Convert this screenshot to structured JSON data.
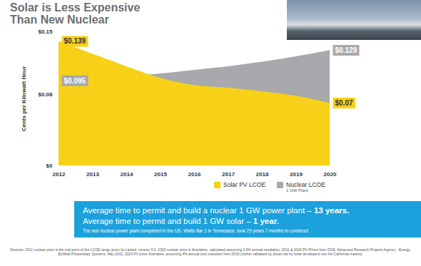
{
  "chart_data": {
    "type": "area",
    "title": "Solar is Less Expensive Than New Nuclear",
    "y_label": "Cents per Kilowatt Hour",
    "x": [
      2012,
      2013,
      2014,
      2015,
      2016,
      2017,
      2018,
      2019,
      2020
    ],
    "xlim": [
      2012,
      2020
    ],
    "xticks": [
      2012,
      2013,
      2014,
      2015,
      2016,
      2017,
      2018,
      2019,
      2020
    ],
    "ylim": [
      0,
      0.15
    ],
    "yticks": [
      {
        "value": 0,
        "label": "$0"
      },
      {
        "value": 0.08,
        "label": "$0.08"
      },
      {
        "value": 0.15,
        "label": "$0.15"
      }
    ],
    "data_labels": true,
    "legend": "bottom",
    "series": [
      {
        "name": "Solar PV LCOE",
        "color": "#f7d117",
        "values": [
          0.139,
          0.125,
          0.111,
          0.098,
          0.09,
          0.087,
          0.083,
          0.078,
          0.07
        ],
        "value_labels": [
          "$0.139",
          null,
          null,
          null,
          null,
          null,
          null,
          null,
          "$0.07"
        ]
      },
      {
        "name": "Nuclear LCOE",
        "sublabel": "1 GW Plant",
        "color": "#a7a9ac",
        "values": [
          0.095,
          0.097,
          0.1,
          0.103,
          0.107,
          0.111,
          0.116,
          0.122,
          0.129
        ],
        "value_labels": [
          "$0.095",
          null,
          null,
          null,
          null,
          null,
          null,
          null,
          "$0.129"
        ]
      }
    ],
    "callout": {
      "lines": [
        {
          "text": "Average time to permit and build a nuclear 1 GW power plant – ",
          "bold": "13 years."
        },
        {
          "text": "Average time to permit and build 1 GW solar – ",
          "bold": "1 year."
        }
      ],
      "note": "The last nuclear power plant completed in the US, Watts Bar 1 in Tennessee, took 23 years 7 months to construct."
    },
    "source": "Sources: 2011 nuclear price is the mid-point of the LCOE range given by Lazard, version 5.0. 2020 nuclear price is illustrative, calculated assuming 3.5% annual escalation; 2011 & 2016 PV Prices from DOE, Advanced Research Projects Agency - Energy, $1/Watt Photovoltaic Systems, May 2011; 2020 PV price illustrative, assuming 4% annual cost reduction from 2016 (further validated by prices bid by solar developers into the California market)."
  }
}
